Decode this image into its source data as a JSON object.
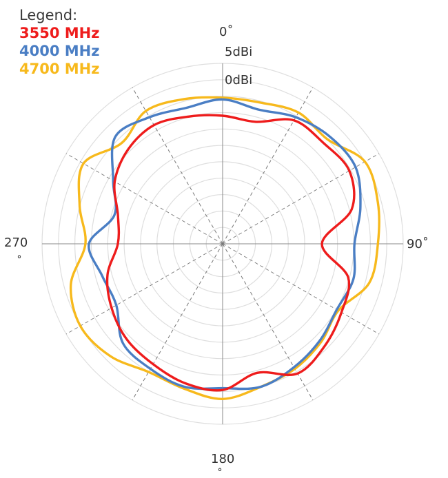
{
  "legend": {
    "title": "Legend:",
    "items": [
      {
        "label": "3550 MHz",
        "color": "#ee1c1c"
      },
      {
        "label": "4000 MHz",
        "color": "#4a7ec4"
      },
      {
        "label": "4700 MHz",
        "color": "#f7b91c"
      }
    ]
  },
  "chart_data": {
    "type": "polar-line",
    "angle_labels": {
      "top": "0˚",
      "right": "90˚",
      "bottom": "180",
      "left": "270"
    },
    "left_degree_mark": "˚",
    "bottom_degree_mark": "˚",
    "radial_labels": [
      "5dBi",
      "0dBi"
    ],
    "angles_deg": [
      0,
      15,
      30,
      45,
      60,
      75,
      90,
      105,
      120,
      135,
      150,
      165,
      180,
      195,
      210,
      225,
      240,
      255,
      270,
      285,
      300,
      315,
      330,
      345
    ],
    "series": [
      {
        "name": "3550 MHz",
        "color": "#ee1c1c",
        "r_norm": [
          0.71,
          0.7,
          0.79,
          0.79,
          0.81,
          0.74,
          0.55,
          0.72,
          0.76,
          0.8,
          0.83,
          0.74,
          0.81,
          0.8,
          0.77,
          0.75,
          0.71,
          0.66,
          0.58,
          0.6,
          0.69,
          0.74,
          0.76,
          0.73
        ]
      },
      {
        "name": "4000 MHz",
        "color": "#4a7ec4",
        "r_norm": [
          0.8,
          0.77,
          0.81,
          0.84,
          0.85,
          0.79,
          0.73,
          0.75,
          0.73,
          0.76,
          0.79,
          0.82,
          0.8,
          0.82,
          0.8,
          0.78,
          0.68,
          0.69,
          0.74,
          0.62,
          0.7,
          0.84,
          0.81,
          0.78
        ]
      },
      {
        "name": "4700 MHz",
        "color": "#f7b91c",
        "r_norm": [
          0.81,
          0.81,
          0.84,
          0.82,
          0.91,
          0.89,
          0.86,
          0.84,
          0.74,
          0.77,
          0.8,
          0.82,
          0.86,
          0.83,
          0.82,
          0.88,
          0.91,
          0.87,
          0.76,
          0.82,
          0.89,
          0.79,
          0.85,
          0.83
        ]
      }
    ]
  }
}
